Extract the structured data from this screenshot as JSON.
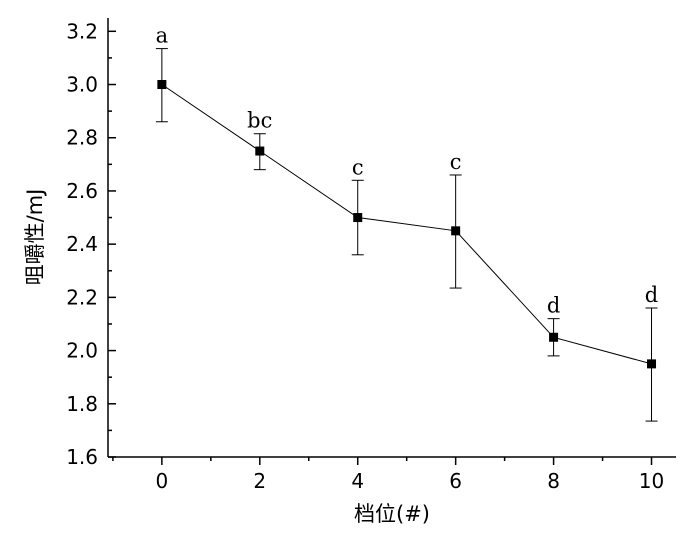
{
  "chart_data": {
    "type": "line",
    "title": "",
    "xlabel": "档位(#)",
    "ylabel": "咀嚼性/mJ",
    "xlim": [
      -1.1,
      10.5
    ],
    "ylim": [
      1.6,
      3.25
    ],
    "x_ticks": [
      0,
      2,
      4,
      6,
      8,
      10
    ],
    "x_tick_labels": [
      "0",
      "2",
      "4",
      "6",
      "8",
      "10"
    ],
    "y_ticks": [
      1.6,
      1.8,
      2.0,
      2.2,
      2.4,
      2.6,
      2.8,
      3.0,
      3.2
    ],
    "y_tick_labels": [
      "1.6",
      "1.8",
      "2.0",
      "2.2",
      "2.4",
      "2.6",
      "2.8",
      "3.0",
      "3.2"
    ],
    "grid": false,
    "legend": "none",
    "series": [
      {
        "x": [
          0,
          2,
          4,
          6,
          8,
          10
        ],
        "y": [
          3.0,
          2.75,
          2.5,
          2.45,
          2.05,
          1.95
        ],
        "error_upper": [
          3.135,
          2.815,
          2.64,
          2.66,
          2.12,
          2.16
        ],
        "error_lower": [
          2.86,
          2.68,
          2.36,
          2.235,
          1.98,
          1.735
        ],
        "significance_labels": [
          "a",
          "bc",
          "c",
          "c",
          "d",
          "d"
        ]
      }
    ]
  }
}
